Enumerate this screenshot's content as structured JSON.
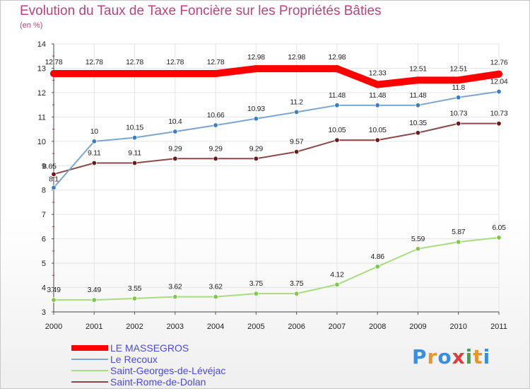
{
  "title": "Evolution du Taux de Taxe Foncière sur les Propriétés Bâties",
  "subtitle": "(en %)",
  "logo": {
    "text": "Proxiti",
    "colors": [
      "#3a8ee0",
      "#e8962a",
      "#3a8ee0",
      "#e23b3b",
      "#3aa84a",
      "#e8962a",
      "#3a8ee0"
    ]
  },
  "chart_data": {
    "type": "line",
    "title": "Evolution du Taux de Taxe Foncière sur les Propriétés Bâties",
    "ylabel": "(en %)",
    "xlabel": "",
    "x": [
      "2000",
      "2001",
      "2002",
      "2003",
      "2004",
      "2005",
      "2006",
      "2007",
      "2008",
      "2009",
      "2010",
      "2011"
    ],
    "ylim": [
      3,
      14
    ],
    "yticks": [
      "3",
      "4",
      "5",
      "6",
      "7",
      "8",
      "9",
      "10",
      "11",
      "12",
      "13",
      "14"
    ],
    "grid": true,
    "legend_position": "bottom-left",
    "series": [
      {
        "name": "LE MASSEGROS",
        "color": "#ff0000",
        "values": [
          12.78,
          12.78,
          12.78,
          12.78,
          12.78,
          12.98,
          12.98,
          12.98,
          12.33,
          12.51,
          12.51,
          12.76
        ],
        "labels": [
          "12.78",
          "12.78",
          "12.78",
          "12.78",
          "12.78",
          "12.98",
          "12.98",
          "12.98",
          "12.33",
          "12.51",
          "12.51",
          "12.76"
        ]
      },
      {
        "name": "Le Recoux",
        "color": "#7aa6d0",
        "marker": "#3a7fc0",
        "values": [
          8.1,
          10,
          10.15,
          10.4,
          10.66,
          10.93,
          11.2,
          11.48,
          11.48,
          11.48,
          11.8,
          12.04
        ],
        "labels": [
          "8.1",
          "10",
          "10.15",
          "10.4",
          "10.66",
          "10.93",
          "11.2",
          "11.48",
          "11.48",
          "11.48",
          "11.8",
          "12.04"
        ]
      },
      {
        "name": "Saint-Georges-de-Lévéjac",
        "color": "#a8dc80",
        "marker": "#7fc84a",
        "values": [
          3.49,
          3.49,
          3.55,
          3.62,
          3.62,
          3.75,
          3.75,
          4.12,
          4.86,
          5.59,
          5.87,
          6.05
        ],
        "labels": [
          "3.49",
          "3.49",
          "3.55",
          "3.62",
          "3.62",
          "3.75",
          "3.75",
          "4.12",
          "4.86",
          "5.59",
          "5.87",
          "6.05"
        ]
      },
      {
        "name": "Saint-Rome-de-Dolan",
        "color": "#8a4a4a",
        "marker": "#6a1a1a",
        "values": [
          8.65,
          9.11,
          9.11,
          9.29,
          9.29,
          9.29,
          9.57,
          10.05,
          10.05,
          10.35,
          10.73,
          10.73
        ],
        "labels": [
          "8.65",
          "9.11",
          "9.11",
          "9.29",
          "9.29",
          "9.29",
          "9.57",
          "10.05",
          "10.05",
          "10.35",
          "10.73",
          "10.73"
        ]
      }
    ]
  }
}
